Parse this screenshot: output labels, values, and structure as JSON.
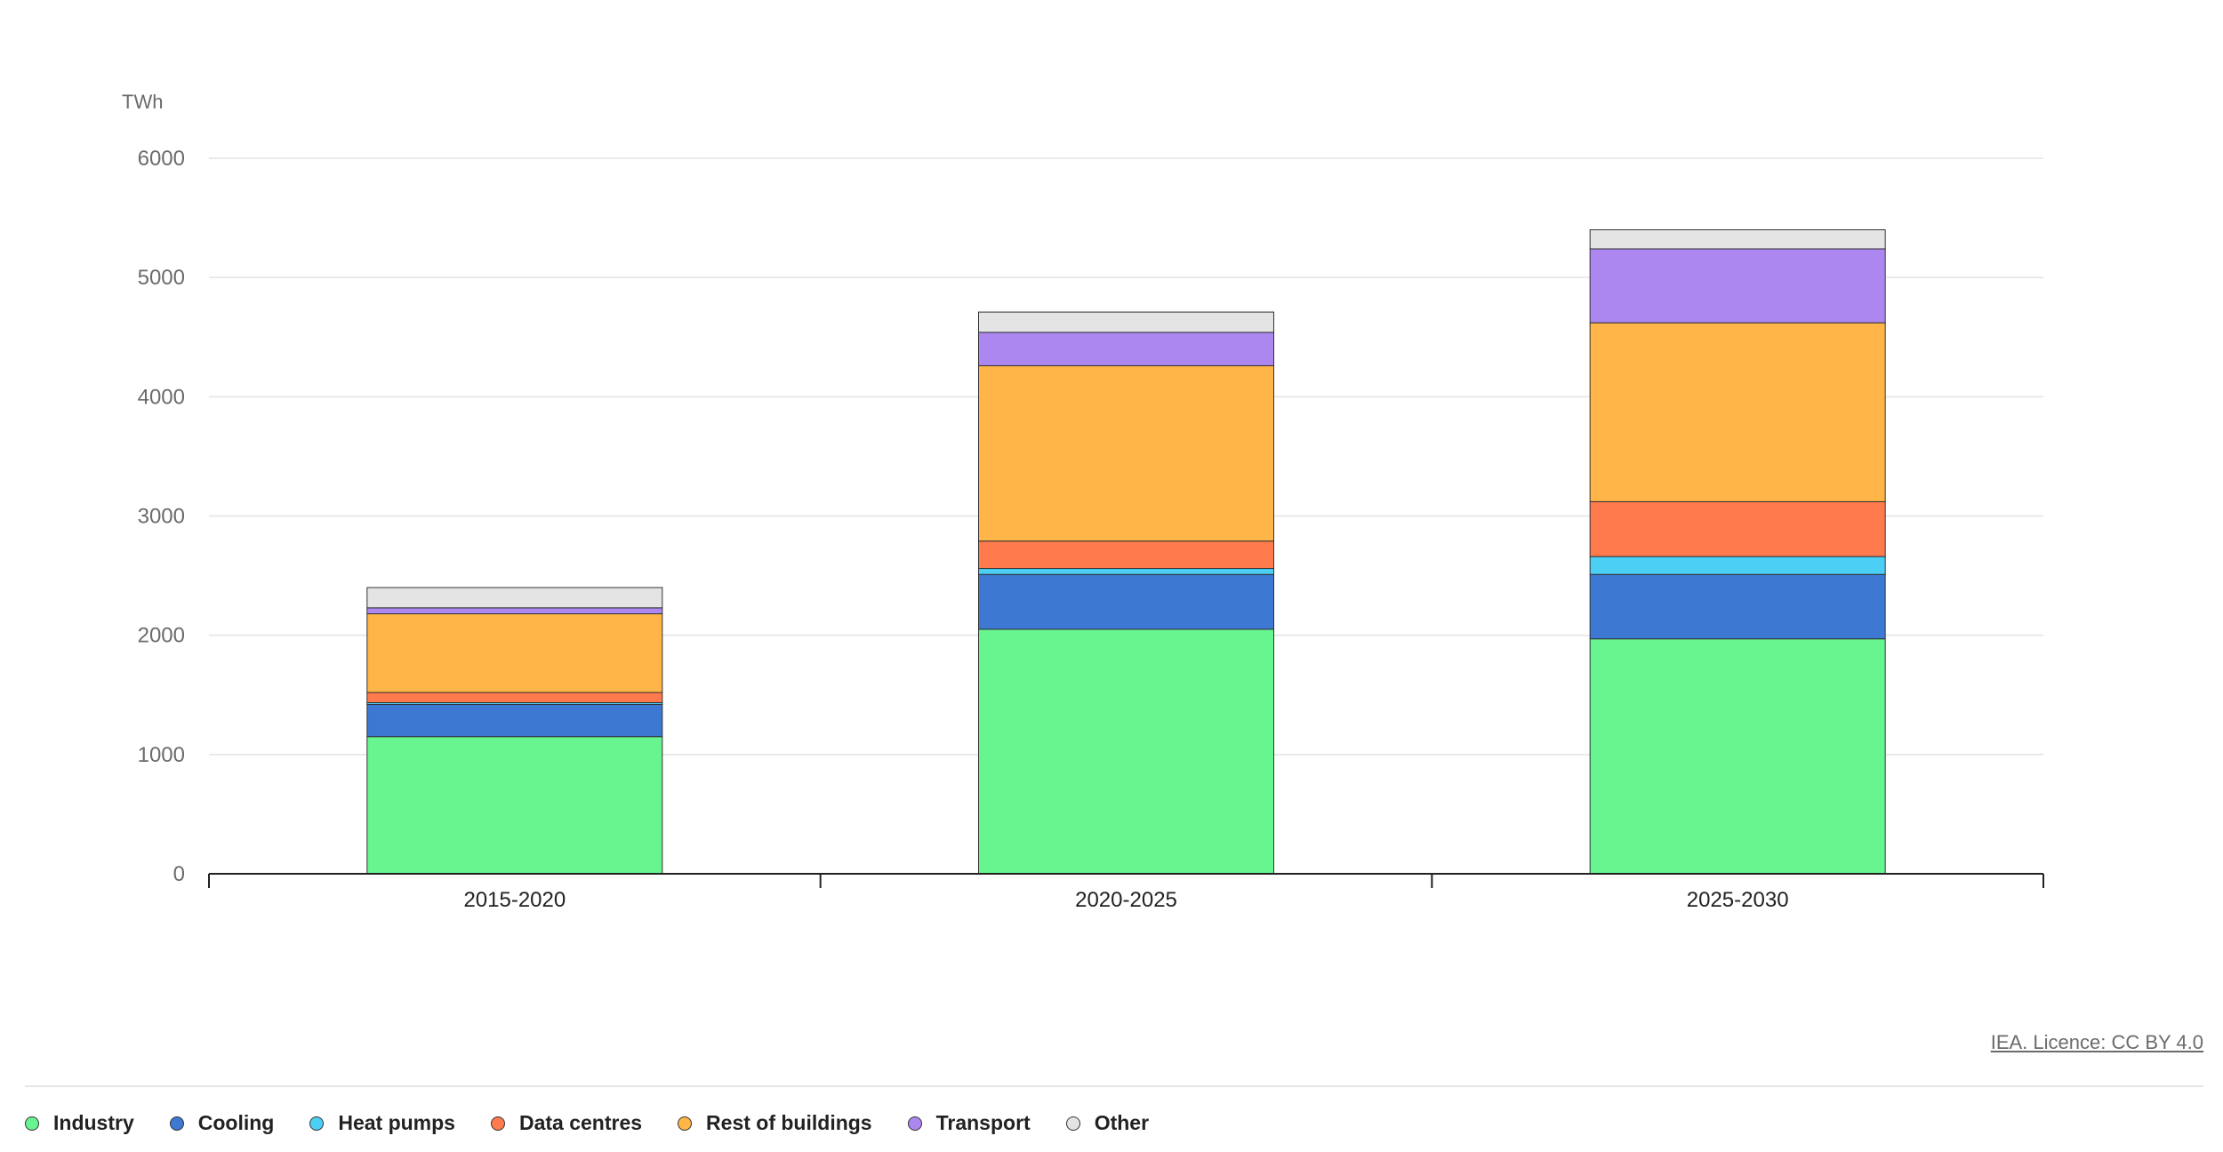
{
  "chart_data": {
    "type": "bar",
    "stacked": true,
    "y_unit": "TWh",
    "ylim": [
      0,
      6000
    ],
    "y_ticks": [
      "0",
      "1000",
      "2000",
      "3000",
      "4000",
      "5000",
      "6000"
    ],
    "categories": [
      "2015-2020",
      "2020-2025",
      "2025-2030"
    ],
    "series": [
      {
        "name": "Industry",
        "color": "#67f590",
        "values": [
          1150,
          2050,
          1970
        ]
      },
      {
        "name": "Cooling",
        "color": "#3d78d3",
        "values": [
          270,
          460,
          540
        ]
      },
      {
        "name": "Heat pumps",
        "color": "#4ccff5",
        "values": [
          15,
          50,
          150
        ]
      },
      {
        "name": "Data centres",
        "color": "#ff7b4d",
        "values": [
          85,
          230,
          460
        ]
      },
      {
        "name": "Rest of buildings",
        "color": "#ffb547",
        "values": [
          660,
          1470,
          1500
        ]
      },
      {
        "name": "Transport",
        "color": "#ad87f0",
        "values": [
          50,
          280,
          620
        ]
      },
      {
        "name": "Other",
        "color": "#e4e4e4",
        "values": [
          170,
          170,
          160
        ]
      }
    ],
    "grid": true,
    "legend_position": "bottom-left"
  },
  "credit": "IEA. Licence: CC BY 4.0"
}
